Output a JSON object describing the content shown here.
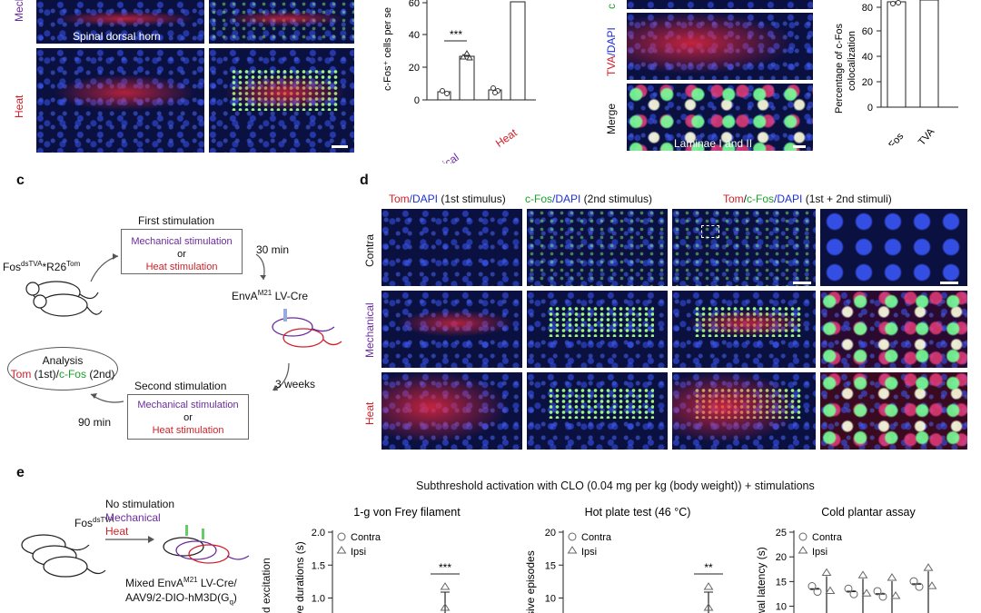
{
  "panel_a": {
    "row_labels": [
      "Mechanical",
      "Heat"
    ],
    "image_label": "Spinal dorsal horn"
  },
  "panel_a_chart": {
    "ylabel": "c-Fos⁺ cells per se",
    "ticks": [
      "0",
      "20",
      "40",
      "60"
    ],
    "categories": [
      "Mechanical",
      "Heat"
    ],
    "significance": "***"
  },
  "panel_b": {
    "tva_label": "TVA",
    "dapi_label": "/DAPI",
    "c_label": "c",
    "merge_label": "Merge",
    "laminae_label": "Laminae I and II",
    "ylabel": "Percentage of c-Fos",
    "ylabel2": "colocalization",
    "ticks": [
      "0",
      "20",
      "40",
      "60",
      "80"
    ],
    "categories": [
      "c-Fos",
      "TVA"
    ]
  },
  "panel_c": {
    "letter": "c",
    "mouse_label_base": "Fos",
    "mouse_label_sup1": "dsTVA",
    "mouse_label_mid": "*R26",
    "mouse_label_sup2": "Tom",
    "first_title": "First stimulation",
    "mech_stim": "Mechanical stimulation",
    "or": "or",
    "heat_stim": "Heat stimulation",
    "time1": "30 min",
    "virus_base": "EnvA",
    "virus_sup": "M21",
    "virus_rest": " LV-Cre",
    "time2": "3 weeks",
    "second_title": "Second stimulation",
    "analysis_title": "Analysis",
    "analysis_tom": "Tom",
    "analysis_first": " (1st)/",
    "analysis_cfos": "c-Fos",
    "analysis_second": " (2nd)",
    "time3": "90 min"
  },
  "panel_d": {
    "letter": "d",
    "col1_tom": "Tom",
    "col1_dapi": "/DAPI",
    "col1_note": " (1st stimulus)",
    "col2_cfos": "c-Fos",
    "col2_dapi": "/DAPI",
    "col2_note": " (2nd stimulus)",
    "col3_tom": "Tom",
    "col3_slash": "/",
    "col3_cfos": "c-Fos",
    "col3_dapi": "/DAPI",
    "col3_note": " (1st + 2nd stimuli)",
    "rows": [
      "Contra",
      "Mechanical",
      "Heat"
    ]
  },
  "panel_e": {
    "letter": "e",
    "header": "Subthreshold activation with CLO (0.04 mg per kg (body weight)) + stimulations",
    "mouse_base": "Fos",
    "mouse_sup": "dsTVA",
    "no_stim": "No stimulation",
    "mechanical": "Mechanical",
    "heat": "Heat",
    "mixed_line1_base": "Mixed EnvA",
    "mixed_line1_sup": "M21",
    "mixed_line1_rest": " LV-Cre/",
    "mixed_line2": "AAV9/2-DIO-hM3D(G",
    "mixed_line2_sub": "q",
    "mixed_line2_end": ")",
    "side_label": "d excitation",
    "legend_contra": "Contra",
    "legend_ipsi": "Ipsi"
  },
  "chart_data": [
    {
      "type": "scatter",
      "title": "1-g von Frey filament",
      "ylabel": "ve durations (s)",
      "ticks": [
        "1.0",
        "1.5",
        "2.0"
      ],
      "ylim": [
        0.8,
        2.0
      ],
      "significance": "***",
      "series": [
        {
          "name": "Contra"
        },
        {
          "name": "Ipsi"
        }
      ]
    },
    {
      "type": "scatter",
      "title": "Hot plate test (46 °C)",
      "ylabel": "sive episodes",
      "ticks": [
        "10",
        "15",
        "20"
      ],
      "ylim": [
        8,
        20
      ],
      "significance": "**",
      "series": [
        {
          "name": "Contra"
        },
        {
          "name": "Ipsi"
        }
      ]
    },
    {
      "type": "scatter",
      "title": "Cold plantar assay",
      "ylabel": "wal latency (s)",
      "ticks": [
        "10",
        "15",
        "20",
        "25"
      ],
      "ylim": [
        9,
        25
      ],
      "series": [
        {
          "name": "Contra"
        },
        {
          "name": "Ipsi"
        }
      ]
    }
  ]
}
